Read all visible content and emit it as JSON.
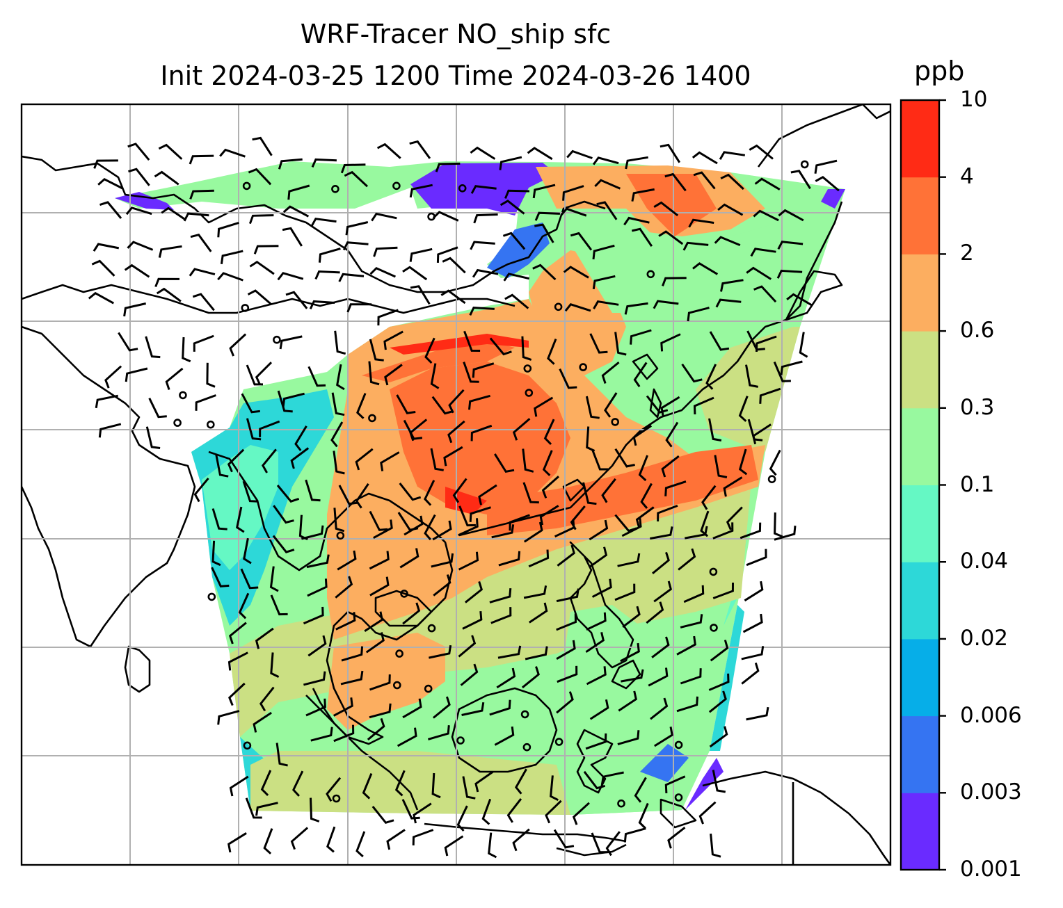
{
  "title": {
    "line1": "WRF-Tracer NO_ship sfc",
    "line2": "Init 2024-03-25 1200 Time 2024-03-26 1400"
  },
  "colorbar": {
    "unit": "ppb",
    "levels": [
      "0.001",
      "0.003",
      "0.006",
      "0.02",
      "0.04",
      "0.1",
      "0.3",
      "0.6",
      "2",
      "4",
      "10"
    ],
    "colors": [
      "#6a2bff",
      "#3574f2",
      "#06aee8",
      "#2dd8d8",
      "#65f8c4",
      "#98f99f",
      "#cbe083",
      "#fcae60",
      "#ff7237",
      "#ff2b15"
    ]
  },
  "map": {
    "domain": "Tropical / East Asia WRF domain",
    "features": [
      "coastlines",
      "gridlines",
      "wind-barbs",
      "calm-circles",
      "tracer-shading"
    ],
    "gridline_color": "#b0b0b0"
  }
}
